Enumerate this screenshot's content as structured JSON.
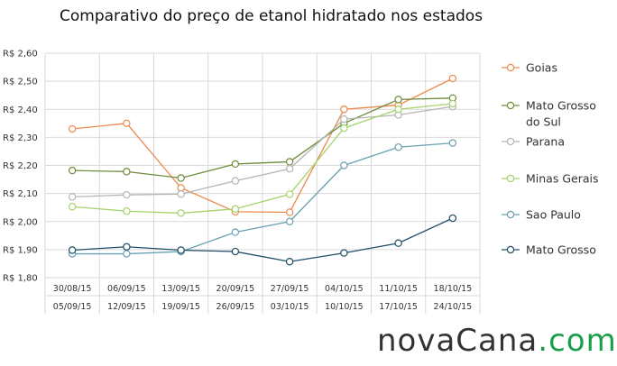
{
  "title": "Comparativo do preço de etanol hidratado nos estados",
  "brand": {
    "part1": "novaCana",
    "part2": ".com"
  },
  "chart_data": {
    "type": "line",
    "ylim": [
      1.8,
      2.6
    ],
    "yticks": [
      1.8,
      1.9,
      2.0,
      2.1,
      2.2,
      2.3,
      2.4,
      2.5,
      2.6
    ],
    "ytick_labels": [
      "R$ 1,80",
      "R$ 1,90",
      "R$ 2,00",
      "R$ 2,10",
      "R$ 2,20",
      "R$ 2,30",
      "R$ 2,40",
      "R$ 2,50",
      "R$ 2,60"
    ],
    "categories_start": [
      "30/08/15",
      "06/09/15",
      "13/09/15",
      "20/09/15",
      "27/09/15",
      "04/10/15",
      "11/10/15",
      "18/10/15"
    ],
    "categories_end": [
      "05/09/15",
      "12/09/15",
      "19/09/15",
      "26/09/15",
      "03/10/15",
      "10/10/15",
      "17/10/15",
      "24/10/15"
    ],
    "grid": true,
    "legend_position": "right",
    "series": [
      {
        "name": "Goias",
        "color": "#ec8a4d",
        "values": [
          2.33,
          2.35,
          2.12,
          2.035,
          2.033,
          2.4,
          2.415,
          2.51
        ]
      },
      {
        "name": "Mato Grosso do Sul",
        "legend_lines": [
          "Mato Grosso",
          "do Sul"
        ],
        "color": "#6f8c3a",
        "values": [
          2.182,
          2.178,
          2.155,
          2.205,
          2.213,
          2.35,
          2.435,
          2.44
        ]
      },
      {
        "name": "Parana",
        "color": "#b5b5b5",
        "values": [
          2.088,
          2.095,
          2.098,
          2.145,
          2.188,
          2.365,
          2.38,
          2.41
        ]
      },
      {
        "name": "Minas Gerais",
        "color": "#a5d36b",
        "values": [
          2.053,
          2.037,
          2.03,
          2.045,
          2.097,
          2.333,
          2.4,
          2.42
        ]
      },
      {
        "name": "Sao Paulo",
        "color": "#6aa0b2",
        "values": [
          1.885,
          1.885,
          1.893,
          1.962,
          2.0,
          2.2,
          2.265,
          2.28
        ]
      },
      {
        "name": "Mato Grosso",
        "color": "#1f4e66",
        "values": [
          1.898,
          1.91,
          1.898,
          1.893,
          1.857,
          1.888,
          1.923,
          2.012
        ]
      }
    ]
  }
}
